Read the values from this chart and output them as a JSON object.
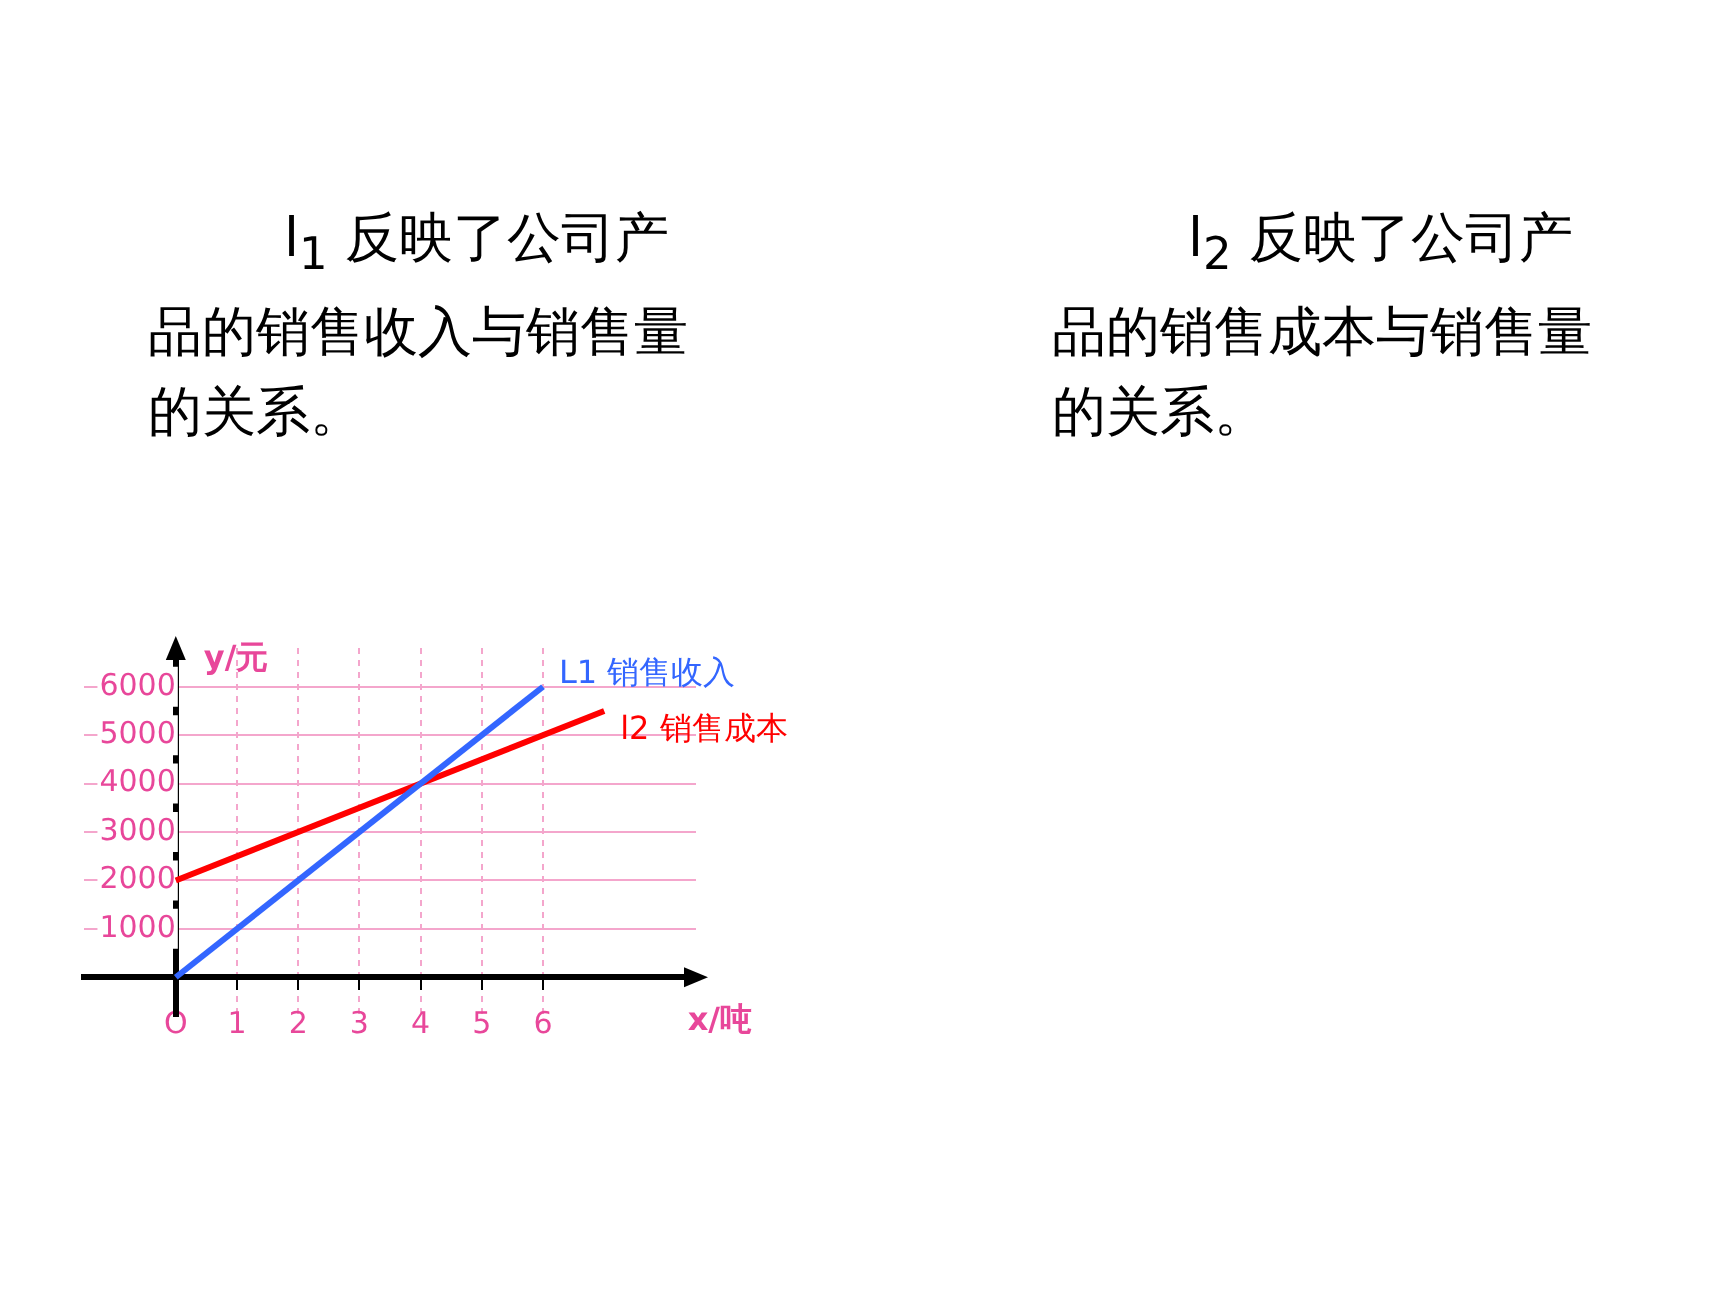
{
  "chart_data": {
    "type": "line",
    "annotations": [
      "l$_{1}$ 反映了公司产品的销售收入与销售量的关系。",
      "l$_{2}$ 反映了公司产品的销售成本与销售量的关系。"
    ],
    "xlabel": "x/吨",
    "ylabel": "y/元",
    "series": [
      {
        "name": "L1 销售收入",
        "color": "#3366ff",
        "x": [
          0,
          6
        ],
        "values": [
          0,
          6000
        ]
      },
      {
        "name": "l2 销售成本",
        "color": "#ff0000",
        "x": [
          0,
          7
        ],
        "values": [
          2000,
          5500
        ]
      }
    ],
    "xlim": [
      -1.5,
      8.5
    ],
    "ylim": [
      -800,
      6800
    ],
    "xticks": [
      {
        "value": 0,
        "label": "O"
      },
      1,
      2,
      3,
      4,
      5,
      6
    ],
    "yticks": [
      1000,
      2000,
      3000,
      4000,
      5000,
      6000
    ],
    "grid": true,
    "marker": "none",
    "line_style": "solid"
  }
}
